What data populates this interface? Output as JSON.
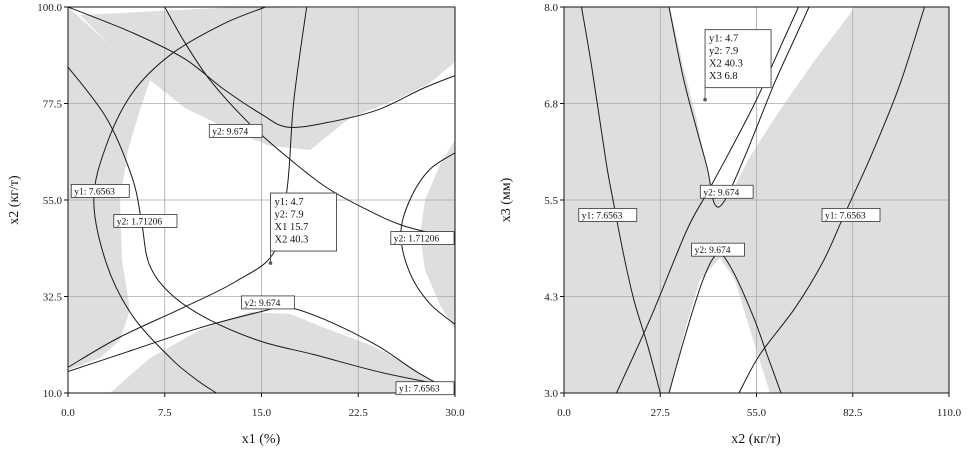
{
  "chart_data": [
    {
      "type": "contour",
      "xlabel": "x1 (%)",
      "ylabel": "x2 (кг/т)",
      "xlim": [
        0,
        30
      ],
      "ylim": [
        10,
        100
      ],
      "xticks": [
        "0.0",
        "7.5",
        "15.0",
        "22.5",
        "30.0"
      ],
      "yticks": [
        "10.0",
        "32.5",
        "55.0",
        "77.5",
        "100.0"
      ],
      "grid": true,
      "shaded_color": "#dedede",
      "contours": [
        {
          "name": "y1: 7.6563",
          "points": [
            [
              0,
              86
            ],
            [
              3,
              74
            ],
            [
              5,
              60
            ],
            [
              5.7,
              50
            ],
            [
              6.3,
              40
            ],
            [
              8,
              33
            ],
            [
              11,
              27
            ],
            [
              15,
              22
            ],
            [
              19,
              19
            ],
            [
              24,
              15
            ],
            [
              28,
              12.5
            ],
            [
              30,
              11.5
            ]
          ]
        },
        {
          "name": "y1: 7.6563",
          "points": [
            [
              0,
              16
            ],
            [
              4,
              23
            ],
            [
              9,
              30
            ],
            [
              13,
              36
            ],
            [
              16,
              43
            ],
            [
              17,
              58
            ],
            [
              17.5,
              78
            ],
            [
              18.5,
              100
            ]
          ]
        },
        {
          "name": "y1: 7.6563",
          "points": [
            [
              7.5,
              100
            ],
            [
              9,
              92
            ],
            [
              11,
              83
            ],
            [
              14,
              73
            ],
            [
              17,
              65
            ],
            [
              20,
              58
            ],
            [
              23,
              53
            ],
            [
              26,
              49
            ],
            [
              30,
              46
            ]
          ]
        },
        {
          "name": "y2: 1.71206",
          "points": [
            [
              15.3,
              100
            ],
            [
              12,
              96
            ],
            [
              8,
              89
            ],
            [
              5,
              80
            ],
            [
              3,
              68
            ],
            [
              2,
              55
            ],
            [
              3,
              40
            ],
            [
              5,
              28
            ],
            [
              8,
              18
            ],
            [
              10,
              13
            ],
            [
              11.5,
              10
            ]
          ]
        },
        {
          "name": "y2: 1.71206",
          "points": [
            [
              30,
              66
            ],
            [
              28,
              62
            ],
            [
              26.5,
              55
            ],
            [
              25.8,
              47
            ],
            [
              26.5,
              38
            ],
            [
              28,
              31
            ],
            [
              30,
              26
            ]
          ]
        },
        {
          "name": "y2: 9.674",
          "points": [
            [
              0,
              100
            ],
            [
              5,
              94
            ],
            [
              9,
              88
            ],
            [
              12,
              81
            ],
            [
              15,
              75
            ],
            [
              17,
              72
            ],
            [
              20,
              73
            ],
            [
              24,
              76
            ],
            [
              27.5,
              81
            ],
            [
              30,
              84
            ]
          ]
        },
        {
          "name": "y2: 9.674",
          "points": [
            [
              0,
              15
            ],
            [
              5,
              20
            ],
            [
              10,
              25
            ],
            [
              15,
              29
            ],
            [
              17,
              30
            ],
            [
              20,
              27
            ],
            [
              24,
              21
            ],
            [
              27,
              15
            ],
            [
              30,
              10
            ]
          ]
        }
      ],
      "labels": [
        {
          "text": "y1: 7.6563",
          "x": 2.5,
          "y": 57
        },
        {
          "text": "y2: 1.71206",
          "x": 6,
          "y": 50
        },
        {
          "text": "y2: 9.674",
          "x": 13,
          "y": 71
        },
        {
          "text": "y2: 1.71206",
          "x": 27.5,
          "y": 46
        },
        {
          "text": "y2: 9.674",
          "x": 15.5,
          "y": 31
        },
        {
          "text": "y1: 7.6563",
          "x": 28,
          "y": 11
        }
      ],
      "info": {
        "point": [
          15.7,
          40.3
        ],
        "lines": [
          "y1:   4.7",
          "y2:   7.9",
          "X1   15.7",
          "X2   40.3"
        ]
      }
    },
    {
      "type": "contour",
      "xlabel": "x2 (кг/т)",
      "ylabel": "x3 (мм)",
      "xlim": [
        0,
        110
      ],
      "ylim": [
        3,
        8
      ],
      "xticks": [
        "0.0",
        "27.5",
        "55.0",
        "82.5",
        "110.0"
      ],
      "yticks": [
        "3.0",
        "4.3",
        "5.5",
        "6.8",
        "8.0"
      ],
      "grid": true,
      "shaded_color": "#dedede",
      "contours": [
        {
          "name": "y1: 7.6563",
          "points": [
            [
              5,
              8
            ],
            [
              8,
              7.2
            ],
            [
              12,
              6.0
            ],
            [
              14,
              5.5
            ],
            [
              17,
              4.8
            ],
            [
              20,
              4.2
            ],
            [
              24,
              3.6
            ],
            [
              27.5,
              3
            ]
          ]
        },
        {
          "name": "y1: 7.6563",
          "points": [
            [
              15,
              3
            ],
            [
              25,
              4.0
            ],
            [
              35,
              5.1
            ],
            [
              41,
              5.6
            ],
            [
              47,
              6.1
            ],
            [
              55,
              6.8
            ],
            [
              63,
              7.6
            ],
            [
              67,
              8
            ]
          ]
        },
        {
          "name": "y1: 7.6563",
          "points": [
            [
              103,
              8
            ],
            [
              96,
              7.0
            ],
            [
              88,
              6.1
            ],
            [
              80,
              5.3
            ],
            [
              74,
              4.7
            ],
            [
              66,
              4.1
            ],
            [
              56,
              3.5
            ],
            [
              50,
              3
            ]
          ]
        },
        {
          "name": "y2: 9.674",
          "points": [
            [
              30,
              8
            ],
            [
              34,
              7.1
            ],
            [
              38,
              6.4
            ],
            [
              41,
              5.9
            ],
            [
              43,
              5.45
            ],
            [
              46,
              5.5
            ],
            [
              52,
              6.1
            ],
            [
              60,
              7.0
            ],
            [
              66,
              7.6
            ],
            [
              70,
              8
            ]
          ]
        },
        {
          "name": "y2: 9.674",
          "points": [
            [
              30,
              3
            ],
            [
              35,
              3.8
            ],
            [
              40,
              4.5
            ],
            [
              44,
              4.8
            ],
            [
              48,
              4.6
            ],
            [
              54,
              4.0
            ],
            [
              58,
              3.5
            ],
            [
              62,
              3
            ]
          ]
        }
      ],
      "labels": [
        {
          "text": "y1: 7.6563",
          "x": 12.5,
          "y": 5.3
        },
        {
          "text": "y2: 9.674",
          "x": 46.5,
          "y": 5.6
        },
        {
          "text": "y2: 9.674",
          "x": 44,
          "y": 4.85
        },
        {
          "text": "y1: 7.6563",
          "x": 82,
          "y": 5.3
        }
      ],
      "info": {
        "point": [
          40.3,
          6.8
        ],
        "lines": [
          "y1:   4.7",
          "y2:   7.9",
          "X2   40.3",
          "X3   6.8"
        ]
      }
    }
  ]
}
